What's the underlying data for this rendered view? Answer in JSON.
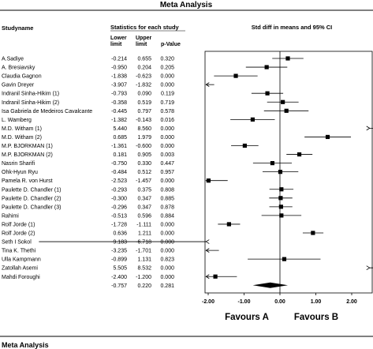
{
  "page": {
    "title": "Meta Analysis",
    "footer_title": "Meta Analysis"
  },
  "headers": {
    "study": "Studyname",
    "stats": "Statistics for each study",
    "lower": [
      "Lower",
      "limit"
    ],
    "upper": [
      "Upper",
      "limit"
    ],
    "pvalue": "p-Value",
    "forest": "Std diff in means and 95% CI"
  },
  "chart_data": {
    "type": "forest",
    "title": "Meta Analysis",
    "xlabel": "Std diff in means and 95% CI",
    "xlim": [
      -2,
      2
    ],
    "ticks": [
      "-2.00",
      "-1.00",
      "0.00",
      "1.00",
      "2.00"
    ],
    "favours_left": "Favours A",
    "favours_right": "Favours B",
    "studies": [
      {
        "name": "A.Sadiye",
        "lower": "-0.214",
        "upper": "0.655",
        "p": "0.320",
        "est": 0.22
      },
      {
        "name": "A. Bresiavsky",
        "lower": "-0.950",
        "upper": "0.204",
        "p": "0.205",
        "est": -0.37
      },
      {
        "name": "Claudia Gagnon",
        "lower": "-1.838",
        "upper": "-0.623",
        "p": "0.000",
        "est": -1.23
      },
      {
        "name": "Gavin Dreyer",
        "lower": "-3.907",
        "upper": "-1.832",
        "p": "0.000",
        "est": -2.87
      },
      {
        "name": "Indranil Sinha-Hikim (1)",
        "lower": "-0.793",
        "upper": "0.090",
        "p": "0.119",
        "est": -0.35
      },
      {
        "name": "Indranil Sinha-Hikim (2)",
        "lower": "-0.358",
        "upper": "0.519",
        "p": "0.719",
        "est": 0.08
      },
      {
        "name": "Isa Gabriela de Medeiros Cavalcante",
        "lower": "-0.445",
        "upper": "0.797",
        "p": "0.578",
        "est": 0.18
      },
      {
        "name": "L. Wamberg",
        "lower": "-1.382",
        "upper": "-0.143",
        "p": "0.016",
        "est": -0.76
      },
      {
        "name": "M.D. Witham (1)",
        "lower": "5.440",
        "upper": "8.560",
        "p": "0.000",
        "est": 7.0
      },
      {
        "name": "M.D. Witham (2)",
        "lower": "0.685",
        "upper": "1.979",
        "p": "0.000",
        "est": 1.33
      },
      {
        "name": "M.P. BJORKMAN (1)",
        "lower": "-1.361",
        "upper": "-0.600",
        "p": "0.000",
        "est": -0.98
      },
      {
        "name": "M.P. BJORKMAN (2)",
        "lower": "0.181",
        "upper": "0.905",
        "p": "0.003",
        "est": 0.54
      },
      {
        "name": "Nasrin Sharifi",
        "lower": "-0.750",
        "upper": "0.330",
        "p": "0.447",
        "est": -0.21
      },
      {
        "name": "Ohk-Hyun Ryu",
        "lower": "-0.484",
        "upper": "0.512",
        "p": "0.957",
        "est": 0.01
      },
      {
        "name": "Pamela R. von Hurst",
        "lower": "-2.523",
        "upper": "-1.457",
        "p": "0.000",
        "est": -1.99
      },
      {
        "name": "Paulette D. Chandler (1)",
        "lower": "-0.293",
        "upper": "0.375",
        "p": "0.808",
        "est": 0.04
      },
      {
        "name": "Paulette D. Chandler (2)",
        "lower": "-0.300",
        "upper": "0.347",
        "p": "0.885",
        "est": 0.02
      },
      {
        "name": "Paulette D. Chandler (3)",
        "lower": "-0.296",
        "upper": "0.347",
        "p": "0.878",
        "est": 0.03
      },
      {
        "name": "Rahimi",
        "lower": "-0.513",
        "upper": "0.596",
        "p": "0.884",
        "est": 0.04
      },
      {
        "name": "Rolf Jorde (1)",
        "lower": "-1.728",
        "upper": "-1.111",
        "p": "0.000",
        "est": -1.42
      },
      {
        "name": "Rolf Jorde (2)",
        "lower": "0.636",
        "upper": "1.211",
        "p": "0.000",
        "est": 0.92
      },
      {
        "name": "Seth I Sokol",
        "lower": "-9.183",
        "upper": "-6.718",
        "p": "0.000",
        "est": -7.95
      },
      {
        "name": "Tina K. Thethi",
        "lower": "-3.235",
        "upper": "-1.701",
        "p": "0.000",
        "est": -2.47
      },
      {
        "name": "Ulla Kampmann",
        "lower": "-0.899",
        "upper": "1.131",
        "p": "0.823",
        "est": 0.12
      },
      {
        "name": "Zatollah Asemi",
        "lower": "5.505",
        "upper": "8.532",
        "p": "0.000",
        "est": 7.02
      },
      {
        "name": "Mahdi Foroughi",
        "lower": "-2.400",
        "upper": "-1.200",
        "p": "0.000",
        "est": -1.8
      }
    ],
    "summary": {
      "lower": "-0.757",
      "upper": "0.220",
      "p": "0.281",
      "est": -0.27
    }
  }
}
